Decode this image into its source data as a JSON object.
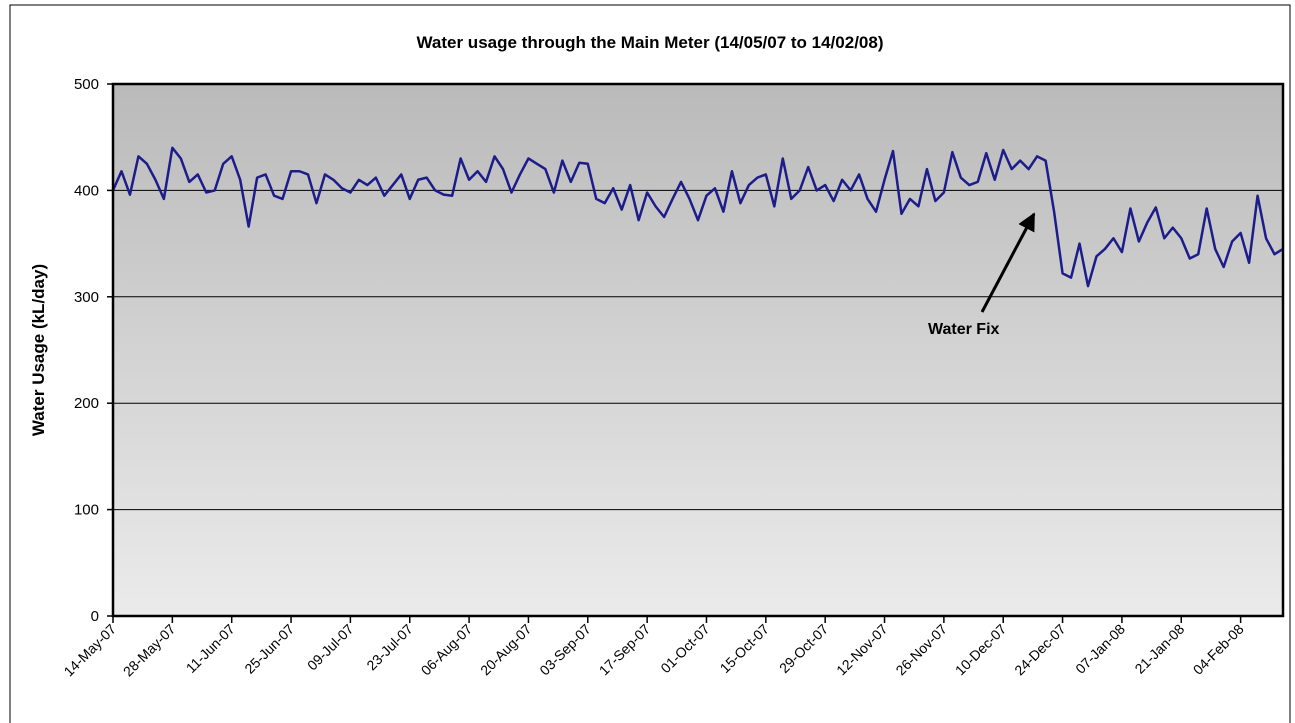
{
  "chart_data": {
    "type": "line",
    "title": "Water usage through the Main Meter (14/05/07 to 14/02/08)",
    "y_label": "Water Usage (kL/day)",
    "annotation": "Water Fix",
    "categories": [
      "14-May-07",
      null,
      null,
      null,
      null,
      null,
      null,
      "28-May-07",
      null,
      null,
      null,
      null,
      null,
      null,
      "11-Jun-07",
      null,
      null,
      null,
      null,
      null,
      null,
      "25-Jun-07",
      null,
      null,
      null,
      null,
      null,
      null,
      "09-Jul-07",
      null,
      null,
      null,
      null,
      null,
      null,
      "23-Jul-07",
      null,
      null,
      null,
      null,
      null,
      null,
      "06-Aug-07",
      null,
      null,
      null,
      null,
      null,
      null,
      "20-Aug-07",
      null,
      null,
      null,
      null,
      null,
      null,
      "03-Sep-07",
      null,
      null,
      null,
      null,
      null,
      null,
      "17-Sep-07",
      null,
      null,
      null,
      null,
      null,
      null,
      "01-Oct-07",
      null,
      null,
      null,
      null,
      null,
      null,
      "15-Oct-07",
      null,
      null,
      null,
      null,
      null,
      null,
      "29-Oct-07",
      null,
      null,
      null,
      null,
      null,
      null,
      "12-Nov-07",
      null,
      null,
      null,
      null,
      null,
      null,
      "26-Nov-07",
      null,
      null,
      null,
      null,
      null,
      null,
      "10-Dec-07",
      null,
      null,
      null,
      null,
      null,
      null,
      "24-Dec-07",
      null,
      null,
      null,
      null,
      null,
      null,
      "07-Jan-08",
      null,
      null,
      null,
      null,
      null,
      null,
      "21-Jan-08",
      null,
      null,
      null,
      null,
      null,
      null,
      "04-Feb-08",
      null,
      null,
      null,
      null,
      null
    ],
    "series": [
      {
        "color": "#1c1c8a",
        "values": [
          400,
          418,
          396,
          432,
          425,
          410,
          392,
          440,
          430,
          408,
          415,
          398,
          400,
          425,
          432,
          410,
          366,
          412,
          415,
          395,
          392,
          418,
          418,
          415,
          388,
          415,
          410,
          402,
          398,
          410,
          405,
          412,
          395,
          405,
          415,
          392,
          410,
          412,
          400,
          396,
          395,
          430,
          410,
          418,
          408,
          432,
          420,
          398,
          415,
          430,
          425,
          420,
          398,
          428,
          408,
          426,
          425,
          392,
          388,
          402,
          382,
          405,
          372,
          398,
          385,
          375,
          392,
          408,
          392,
          372,
          395,
          402,
          380,
          418,
          388,
          405,
          412,
          415,
          385,
          430,
          392,
          400,
          422,
          400,
          405,
          390,
          410,
          400,
          415,
          392,
          380,
          410,
          437,
          378,
          392,
          385,
          420,
          390,
          398,
          436,
          412,
          405,
          408,
          435,
          410,
          438,
          420,
          428,
          420,
          432,
          428,
          380,
          322,
          318,
          350,
          310,
          338,
          345,
          355,
          342,
          383,
          352,
          370,
          384,
          355,
          365,
          355,
          336,
          340,
          383,
          345,
          328,
          352,
          360,
          332,
          395,
          355,
          340,
          345
        ]
      }
    ],
    "ylim": [
      0,
      500
    ],
    "yticks": [
      0,
      100,
      200,
      300,
      400,
      500
    ],
    "grid": true
  }
}
